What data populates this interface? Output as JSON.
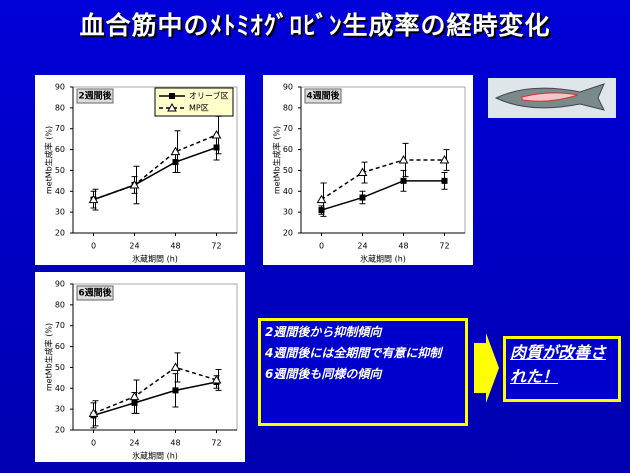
{
  "title": "血合筋中のﾒﾄﾐｵｸﾞﾛﾋﾞﾝ生成率の経時変化",
  "notes": [
    "2週間後から抑制傾向",
    "4週間後には全期間で有意に抑制",
    "6週間後も同様の傾向"
  ],
  "callout": "肉質が改善された！",
  "chart_data": [
    {
      "type": "line",
      "subtitle": "2週間後",
      "xlabel": "氷蔵期間 (h)",
      "ylabel": "metMb生成率 (%)",
      "x": [
        0,
        24,
        48,
        72
      ],
      "xlim": [
        -12,
        84
      ],
      "xticks": [
        0,
        24,
        48,
        72
      ],
      "ylim": [
        20,
        90
      ],
      "yticks": [
        20,
        30,
        40,
        50,
        60,
        70,
        80,
        90
      ],
      "legend": "top-right",
      "series": [
        {
          "name": "オリーブ区",
          "color": "#000000",
          "line_style": "solid",
          "marker": "square",
          "values": [
            36,
            43,
            54,
            61
          ],
          "errors": [
            4,
            4,
            5,
            6
          ]
        },
        {
          "name": "MP区",
          "color": "#000000",
          "line_style": "dashed",
          "marker": "triangle-open",
          "values": [
            36,
            43,
            59,
            67
          ],
          "errors": [
            5,
            9,
            10,
            9
          ]
        }
      ]
    },
    {
      "type": "line",
      "subtitle": "4週間後",
      "xlabel": "氷蔵期間 (h)",
      "ylabel": "metMb生成率 (%)",
      "x": [
        0,
        24,
        48,
        72
      ],
      "xlim": [
        -12,
        84
      ],
      "xticks": [
        0,
        24,
        48,
        72
      ],
      "ylim": [
        20,
        90
      ],
      "yticks": [
        20,
        30,
        40,
        50,
        60,
        70,
        80,
        90
      ],
      "series": [
        {
          "color": "#000000",
          "line_style": "solid",
          "marker": "square",
          "values": [
            31,
            37,
            45,
            45
          ],
          "errors": [
            2,
            3,
            5,
            4
          ]
        },
        {
          "color": "#000000",
          "line_style": "dashed",
          "marker": "triangle-open",
          "values": [
            36,
            49,
            55,
            55
          ],
          "errors": [
            8,
            5,
            8,
            5
          ]
        }
      ]
    },
    {
      "type": "line",
      "subtitle": "6週間後",
      "xlabel": "氷蔵期間 (h)",
      "ylabel": "metMb生成率 (%)",
      "x": [
        0,
        24,
        48,
        72
      ],
      "xlim": [
        -12,
        84
      ],
      "xticks": [
        0,
        24,
        48,
        72
      ],
      "ylim": [
        20,
        90
      ],
      "yticks": [
        20,
        30,
        40,
        50,
        60,
        70,
        80,
        90
      ],
      "series": [
        {
          "color": "#000000",
          "line_style": "solid",
          "marker": "square",
          "values": [
            27,
            33,
            39,
            43
          ],
          "errors": [
            6,
            5,
            8,
            3
          ]
        },
        {
          "color": "#000000",
          "line_style": "dashed",
          "marker": "triangle-open",
          "values": [
            28,
            36,
            50,
            44
          ],
          "errors": [
            6,
            8,
            7,
            5
          ]
        }
      ]
    }
  ]
}
